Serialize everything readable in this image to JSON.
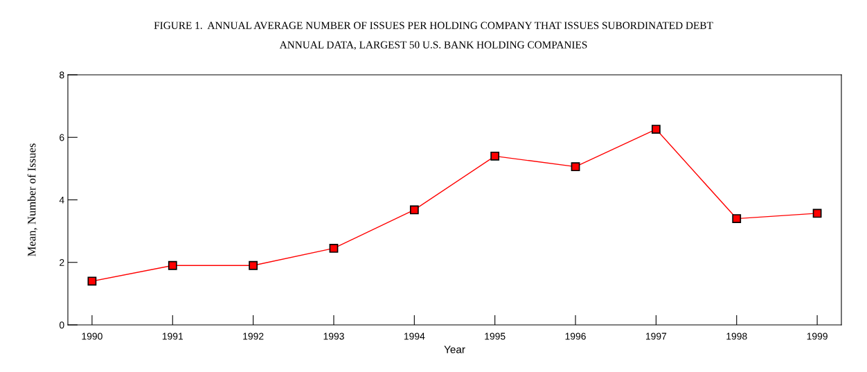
{
  "chart_data": {
    "type": "line",
    "title": "FIGURE 1.  ANNUAL AVERAGE NUMBER OF ISSUES PER HOLDING COMPANY THAT ISSUES SUBORDINATED DEBT",
    "subtitle": "ANNUAL DATA, LARGEST 50 U.S. BANK HOLDING COMPANIES",
    "xlabel": "Year",
    "ylabel": "Mean, Number of Issues",
    "x": [
      1990,
      1991,
      1992,
      1993,
      1994,
      1995,
      1996,
      1997,
      1998,
      1999
    ],
    "series": [
      {
        "color": "#ff0000",
        "values": [
          1.4,
          1.9,
          1.9,
          2.45,
          3.68,
          5.4,
          5.06,
          6.26,
          3.4,
          3.57
        ]
      }
    ],
    "xlim": [
      1989.7,
      1999.3
    ],
    "xticks": [
      1990,
      1991,
      1992,
      1993,
      1994,
      1995,
      1996,
      1997,
      1998,
      1999
    ],
    "ylim": [
      0,
      8
    ],
    "yticks": [
      0,
      2,
      4,
      6,
      8
    ],
    "grid": false,
    "marker": "square",
    "line_style": "solid"
  }
}
